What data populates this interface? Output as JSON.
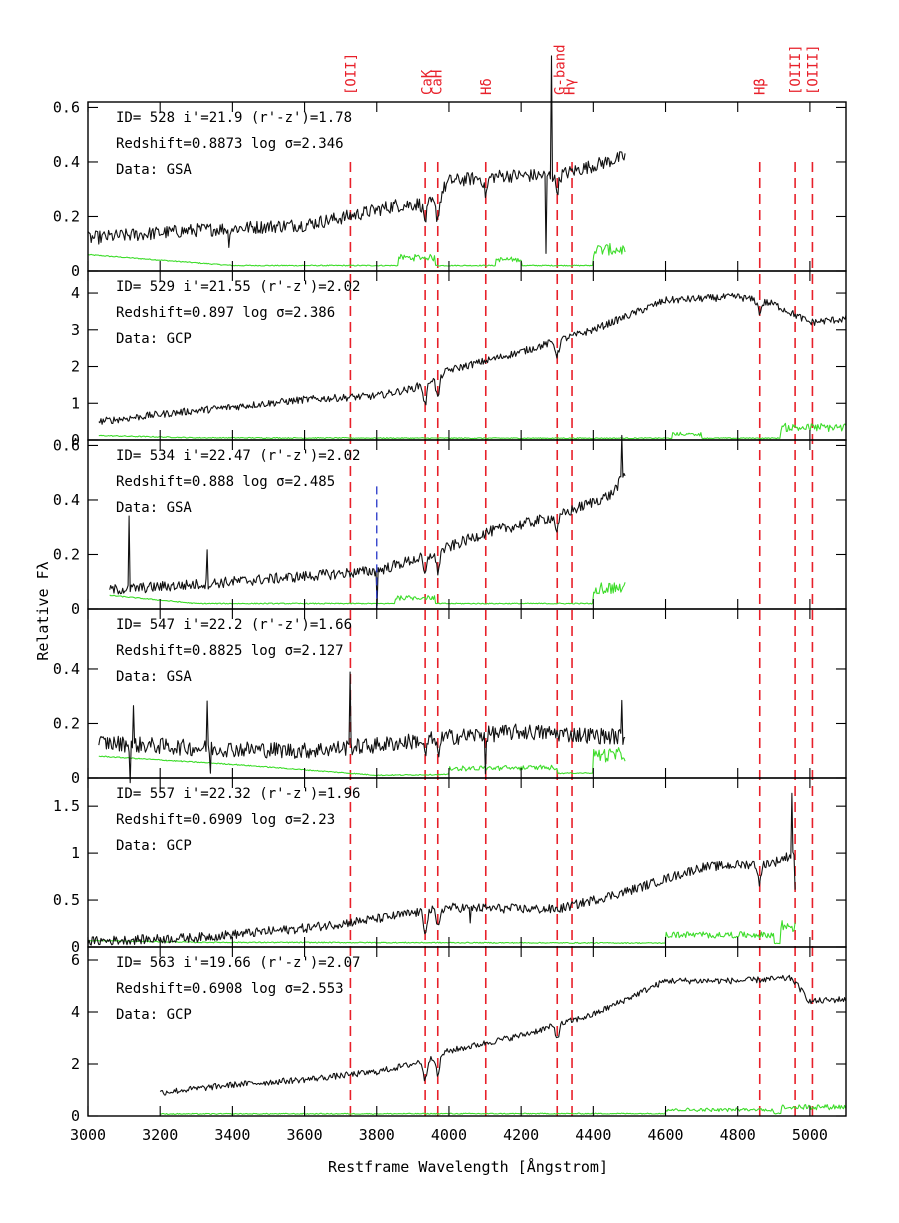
{
  "chart_data": {
    "type": "line",
    "xlabel": "Restframe Wavelength [Ångstrom]",
    "ylabel": "Relative Fλ",
    "xlim": [
      3000,
      5100
    ],
    "x_ticks": [
      3000,
      3200,
      3400,
      3600,
      3800,
      4000,
      4200,
      4400,
      4600,
      4800,
      5000
    ],
    "line_markers": [
      {
        "label": "[OII]",
        "wavelength": 3727
      },
      {
        "label": "CaK",
        "wavelength": 3934
      },
      {
        "label": "CaH",
        "wavelength": 3969
      },
      {
        "label": "Hδ",
        "wavelength": 4102
      },
      {
        "label": "G-band",
        "wavelength": 4300
      },
      {
        "label": "Hγ",
        "wavelength": 4341
      },
      {
        "label": "Hβ",
        "wavelength": 4861
      },
      {
        "label": "[OIII]",
        "wavelength": 4959
      },
      {
        "label": "[OIII]",
        "wavelength": 5007
      }
    ],
    "panels": [
      {
        "line1": "ID= 528  i'=21.9  (r'-z')=1.78",
        "line2": "Redshift=0.8873   log σ=2.346",
        "line3": "Data: GSA",
        "ylim": [
          0,
          0.62
        ],
        "yticks": [
          0,
          0.2,
          0.4,
          0.6
        ],
        "ytick_labels": [
          "0",
          "0.2",
          "0.4",
          "0.6"
        ],
        "range": [
          3000,
          4490
        ],
        "flux_knots": [
          [
            3000,
            0.12
          ],
          [
            3300,
            0.15
          ],
          [
            3600,
            0.17
          ],
          [
            3720,
            0.2
          ],
          [
            3850,
            0.24
          ],
          [
            3960,
            0.25
          ],
          [
            4000,
            0.33
          ],
          [
            4150,
            0.35
          ],
          [
            4300,
            0.35
          ],
          [
            4490,
            0.42
          ]
        ],
        "dips": [
          [
            3934,
            0.06
          ],
          [
            3969,
            0.07
          ],
          [
            4102,
            0.06
          ],
          [
            4300,
            0.05
          ]
        ],
        "spikes": [
          [
            3390,
            -0.08
          ],
          [
            4285,
            0.45
          ],
          [
            4270,
            -0.3
          ]
        ],
        "noise": 0.025,
        "error_base": [
          [
            3000,
            0.06
          ],
          [
            3400,
            0.02
          ],
          [
            3860,
            0.02
          ],
          [
            4490,
            0.02
          ]
        ],
        "error_bumps": [
          [
            3860,
            3960,
            0.04
          ],
          [
            4130,
            4200,
            0.03
          ],
          [
            4400,
            4490,
            0.08
          ]
        ],
        "blue_marker": null
      },
      {
        "line1": "ID= 529  i'=21.55 (r'-z')=2.02",
        "line2": "Redshift=0.897   log σ=2.386",
        "line3": "Data: GCP",
        "ylim": [
          0,
          4.6
        ],
        "yticks": [
          0,
          1,
          2,
          3,
          4
        ],
        "ytick_labels": [
          "0",
          "1",
          "2",
          "3",
          "4"
        ],
        "range": [
          3030,
          5100
        ],
        "flux_knots": [
          [
            3030,
            0.5
          ],
          [
            3200,
            0.7
          ],
          [
            3400,
            0.9
          ],
          [
            3600,
            1.1
          ],
          [
            3800,
            1.2
          ],
          [
            3900,
            1.4
          ],
          [
            4000,
            1.9
          ],
          [
            4200,
            2.4
          ],
          [
            4400,
            3.0
          ],
          [
            4600,
            3.8
          ],
          [
            4800,
            3.9
          ],
          [
            4900,
            3.7
          ],
          [
            5000,
            3.2
          ],
          [
            5100,
            3.3
          ]
        ],
        "dips": [
          [
            3934,
            0.6
          ],
          [
            3969,
            0.6
          ],
          [
            4300,
            0.4
          ],
          [
            4861,
            0.3
          ]
        ],
        "spikes": [],
        "noise": 0.1,
        "error_base": [
          [
            3030,
            0.12
          ],
          [
            3300,
            0.06
          ],
          [
            4000,
            0.05
          ],
          [
            5100,
            0.05
          ]
        ],
        "error_bumps": [
          [
            4620,
            4700,
            0.15
          ],
          [
            4920,
            5100,
            0.4
          ]
        ],
        "blue_marker": null
      },
      {
        "line1": "ID= 534  i'=22.47 (r'-z')=2.02",
        "line2": "Redshift=0.888   log σ=2.485",
        "line3": "Data: GSA",
        "ylim": [
          0,
          0.62
        ],
        "yticks": [
          0,
          0.2,
          0.4,
          0.6
        ],
        "ytick_labels": [
          "0",
          "0.2",
          "0.4",
          "0.6"
        ],
        "range": [
          3060,
          4490
        ],
        "flux_knots": [
          [
            3060,
            0.07
          ],
          [
            3300,
            0.09
          ],
          [
            3600,
            0.12
          ],
          [
            3800,
            0.14
          ],
          [
            3950,
            0.2
          ],
          [
            4100,
            0.28
          ],
          [
            4300,
            0.34
          ],
          [
            4450,
            0.42
          ],
          [
            4490,
            0.5
          ]
        ],
        "dips": [
          [
            3934,
            0.07
          ],
          [
            3969,
            0.07
          ],
          [
            4300,
            0.05
          ]
        ],
        "spikes": [
          [
            3115,
            0.25
          ],
          [
            3330,
            0.12
          ],
          [
            4480,
            0.15
          ],
          [
            3800,
            -0.12
          ]
        ],
        "noise": 0.02,
        "error_base": [
          [
            3060,
            0.05
          ],
          [
            3300,
            0.02
          ],
          [
            4490,
            0.02
          ]
        ],
        "error_bumps": [
          [
            3850,
            3960,
            0.03
          ],
          [
            4400,
            4490,
            0.08
          ]
        ],
        "blue_marker": {
          "wavelength": 3800,
          "ymax": 0.45
        }
      },
      {
        "line1": "ID= 547  i'=22.2  (r'-z')=1.66",
        "line2": "Redshift=0.8825   log σ=2.127",
        "line3": "Data: GSA",
        "ylim": [
          0,
          0.62
        ],
        "yticks": [
          0,
          0.2,
          0.4
        ],
        "ytick_labels": [
          "0",
          "0.2",
          "0.4"
        ],
        "range": [
          3030,
          4490
        ],
        "flux_knots": [
          [
            3030,
            0.13
          ],
          [
            3300,
            0.11
          ],
          [
            3600,
            0.1
          ],
          [
            3800,
            0.12
          ],
          [
            4000,
            0.15
          ],
          [
            4200,
            0.17
          ],
          [
            4490,
            0.15
          ]
        ],
        "dips": [
          [
            3934,
            0.05
          ],
          [
            3969,
            0.05
          ]
        ],
        "spikes": [
          [
            3727,
            0.3
          ],
          [
            3330,
            0.18
          ],
          [
            3125,
            0.12
          ],
          [
            3118,
            -0.14
          ],
          [
            3340,
            -0.1
          ],
          [
            4102,
            -0.15
          ],
          [
            4480,
            0.12
          ]
        ],
        "noise": 0.03,
        "error_base": [
          [
            3030,
            0.08
          ],
          [
            3400,
            0.05
          ],
          [
            3800,
            0.01
          ],
          [
            4490,
            0.02
          ]
        ],
        "error_bumps": [
          [
            4000,
            4300,
            0.03
          ],
          [
            4400,
            4490,
            0.09
          ]
        ],
        "blue_marker": null
      },
      {
        "line1": "ID= 557  i'=22.32 (r'-z')=1.96",
        "line2": "Redshift=0.6909   log σ=2.23",
        "line3": "Data: GCP",
        "ylim": [
          0,
          1.8
        ],
        "yticks": [
          0,
          0.5,
          1,
          1.5
        ],
        "ytick_labels": [
          "0",
          "0.5",
          "1",
          "1.5"
        ],
        "range": [
          3000,
          4960
        ],
        "flux_knots": [
          [
            3000,
            0.06
          ],
          [
            3300,
            0.1
          ],
          [
            3600,
            0.2
          ],
          [
            3800,
            0.3
          ],
          [
            4000,
            0.42
          ],
          [
            4300,
            0.4
          ],
          [
            4500,
            0.6
          ],
          [
            4700,
            0.85
          ],
          [
            4900,
            0.9
          ],
          [
            4960,
            1.0
          ]
        ],
        "dips": [
          [
            3934,
            0.2
          ],
          [
            3969,
            0.2
          ],
          [
            4861,
            0.2
          ]
        ],
        "spikes": [
          [
            4950,
            0.65
          ],
          [
            4058,
            -0.2
          ],
          [
            4960,
            -0.35
          ]
        ],
        "noise": 0.05,
        "error_base": [
          [
            3000,
            0.07
          ],
          [
            3300,
            0.05
          ],
          [
            4960,
            0.04
          ]
        ],
        "error_bumps": [
          [
            4600,
            4900,
            0.12
          ],
          [
            4920,
            4960,
            0.25
          ]
        ],
        "blue_marker": null
      },
      {
        "line1": "ID= 563  i'=19.66 (r'-z')=2.07",
        "line2": "Redshift=0.6908   log σ=2.553",
        "line3": "Data: GCP",
        "ylim": [
          0,
          6.5
        ],
        "yticks": [
          0,
          2,
          4,
          6
        ],
        "ytick_labels": [
          "0",
          "2",
          "4",
          "6"
        ],
        "range": [
          3200,
          5100
        ],
        "flux_knots": [
          [
            3200,
            0.9
          ],
          [
            3400,
            1.2
          ],
          [
            3600,
            1.4
          ],
          [
            3800,
            1.7
          ],
          [
            3900,
            2.0
          ],
          [
            4000,
            2.5
          ],
          [
            4200,
            3.1
          ],
          [
            4400,
            3.9
          ],
          [
            4600,
            5.2
          ],
          [
            4800,
            5.2
          ],
          [
            4950,
            5.3
          ],
          [
            5000,
            4.4
          ],
          [
            5100,
            4.5
          ]
        ],
        "dips": [
          [
            3934,
            0.8
          ],
          [
            3969,
            0.8
          ],
          [
            4300,
            0.5
          ]
        ],
        "spikes": [],
        "noise": 0.12,
        "error_base": [
          [
            3200,
            0.08
          ],
          [
            5100,
            0.1
          ]
        ],
        "error_bumps": [
          [
            4600,
            4900,
            0.2
          ],
          [
            4920,
            5100,
            0.35
          ]
        ],
        "blue_marker": null
      }
    ]
  }
}
